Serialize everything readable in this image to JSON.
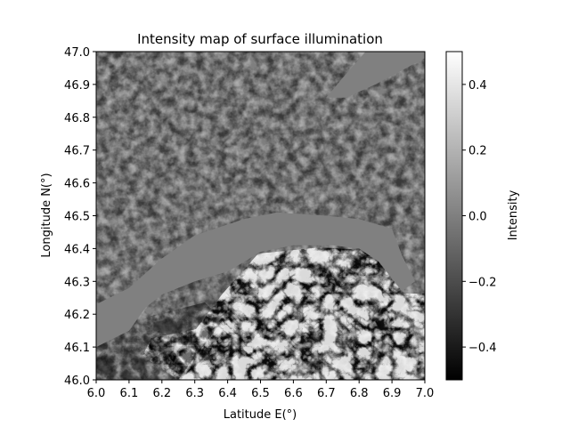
{
  "chart_data": {
    "type": "heatmap",
    "title": "Intensity map of surface illumination",
    "xlabel": "Latitude E(°)",
    "ylabel": "Longitude N(°)",
    "colorbar_label": "Intensity",
    "colormap": "gray",
    "xlim": [
      6.0,
      7.0
    ],
    "ylim": [
      46.0,
      47.0
    ],
    "clim": [
      -0.5,
      0.5
    ],
    "x_ticks": [
      "6.0",
      "6.1",
      "6.2",
      "6.3",
      "6.4",
      "6.5",
      "6.6",
      "6.7",
      "6.8",
      "6.9",
      "7.0"
    ],
    "y_ticks": [
      "46.0",
      "46.1",
      "46.2",
      "46.3",
      "46.4",
      "46.5",
      "46.6",
      "46.7",
      "46.8",
      "46.9",
      "47.0"
    ],
    "colorbar_ticks": [
      "−0.4",
      "−0.2",
      "0.0",
      "0.2",
      "0.4"
    ],
    "colorbar_tick_values": [
      -0.4,
      -0.2,
      0.0,
      0.2,
      0.4
    ],
    "lake_intensity": 0.0,
    "lake_outline": [
      [
        6.0,
        46.23
      ],
      [
        6.1,
        46.28
      ],
      [
        6.2,
        46.37
      ],
      [
        6.3,
        46.44
      ],
      [
        6.45,
        46.49
      ],
      [
        6.55,
        46.51
      ],
      [
        6.7,
        46.5
      ],
      [
        6.8,
        46.49
      ],
      [
        6.9,
        46.46
      ],
      [
        6.93,
        46.38
      ],
      [
        6.97,
        46.3
      ],
      [
        6.93,
        46.27
      ],
      [
        6.86,
        46.36
      ],
      [
        6.8,
        46.4
      ],
      [
        6.72,
        46.41
      ],
      [
        6.6,
        46.41
      ],
      [
        6.5,
        46.39
      ],
      [
        6.45,
        46.36
      ],
      [
        6.4,
        46.33
      ],
      [
        6.3,
        46.3
      ],
      [
        6.2,
        46.26
      ],
      [
        6.15,
        46.22
      ],
      [
        6.1,
        46.15
      ],
      [
        6.0,
        46.1
      ]
    ],
    "upper_lake_outline": [
      [
        6.82,
        47.0
      ],
      [
        7.0,
        47.0
      ],
      [
        7.0,
        46.98
      ],
      [
        6.85,
        46.9
      ],
      [
        6.76,
        46.86
      ],
      [
        6.7,
        46.86
      ],
      [
        6.75,
        46.92
      ]
    ]
  }
}
